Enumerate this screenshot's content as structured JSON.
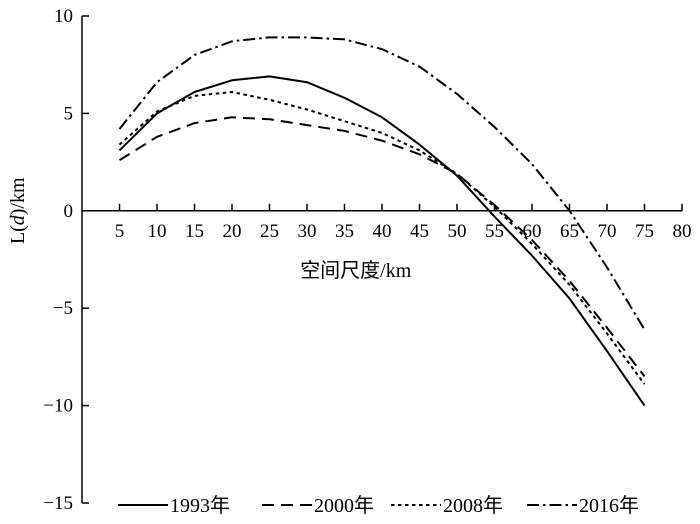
{
  "chart_data": {
    "type": "line",
    "xlabel": "空间尺度/km",
    "ylabel_parts": [
      "L(",
      "d",
      ")/km"
    ],
    "xlim": [
      0,
      80
    ],
    "ylim": [
      -15,
      10
    ],
    "x_ticks": [
      5,
      10,
      15,
      20,
      25,
      30,
      35,
      40,
      45,
      50,
      55,
      60,
      65,
      70,
      75,
      80
    ],
    "x_tick_labels": [
      "5",
      "10",
      "15",
      "20",
      "25",
      "30",
      "35",
      "40",
      "45",
      "50",
      "55",
      "60",
      "65",
      "70",
      "75",
      "80"
    ],
    "y_ticks": [
      -15,
      -10,
      -5,
      0,
      5,
      10
    ],
    "y_tick_labels": [
      "−15",
      "−10",
      "−5",
      "0",
      "5",
      "10"
    ],
    "grid": false,
    "legend_position": "bottom",
    "x": [
      5,
      10,
      15,
      20,
      25,
      30,
      35,
      40,
      45,
      50,
      55,
      60,
      65,
      70,
      75
    ],
    "series": [
      {
        "name": "1993年",
        "dash": "solid",
        "values": [
          3.1,
          5.0,
          6.1,
          6.7,
          6.9,
          6.6,
          5.8,
          4.8,
          3.4,
          1.8,
          -0.3,
          -2.3,
          -4.5,
          -7.2,
          -10.0
        ]
      },
      {
        "name": "2000年",
        "dash": "dashed",
        "values": [
          2.6,
          3.8,
          4.5,
          4.8,
          4.7,
          4.4,
          4.1,
          3.6,
          2.9,
          1.9,
          0.3,
          -1.5,
          -3.6,
          -6.0,
          -8.5
        ]
      },
      {
        "name": "2008年",
        "dash": "dotted",
        "values": [
          3.4,
          5.1,
          5.9,
          6.1,
          5.7,
          5.2,
          4.6,
          4.0,
          3.1,
          1.9,
          0.2,
          -1.7,
          -3.8,
          -6.3,
          -8.9
        ]
      },
      {
        "name": "2016年",
        "dash": "dashdot",
        "values": [
          4.2,
          6.6,
          8.0,
          8.7,
          8.9,
          8.9,
          8.8,
          8.3,
          7.4,
          6.0,
          4.3,
          2.4,
          0.0,
          -2.9,
          -6.1
        ]
      }
    ]
  }
}
